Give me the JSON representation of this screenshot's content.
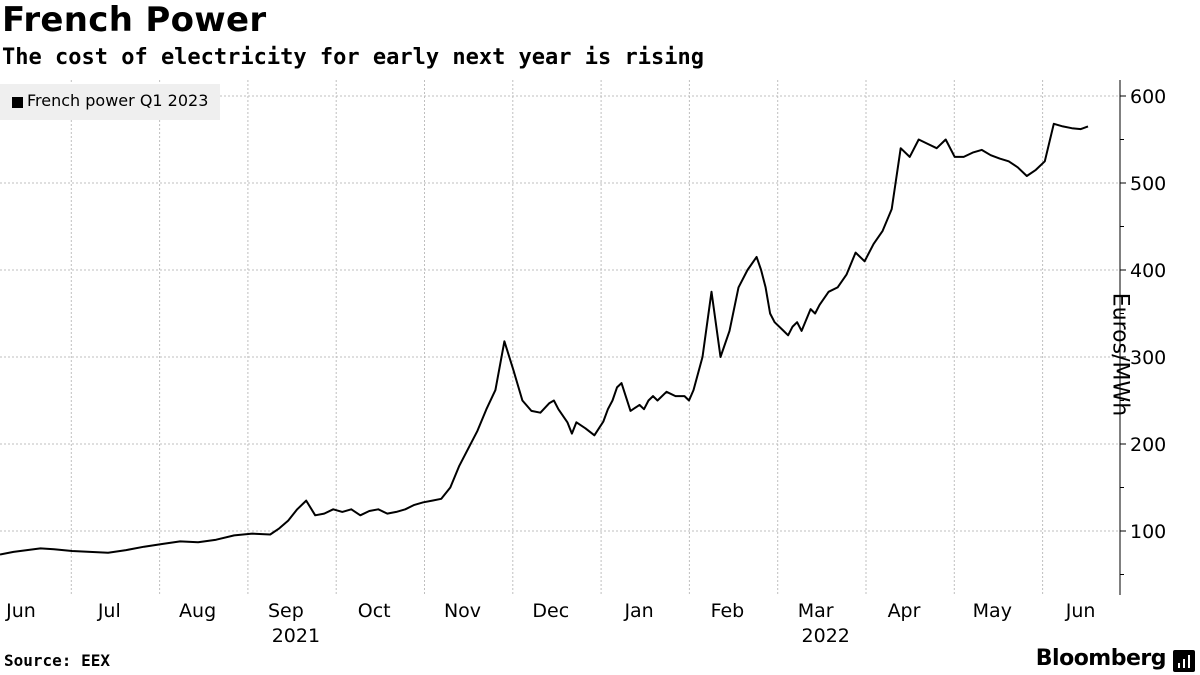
{
  "header": {
    "title": "French Power",
    "subtitle": "The cost of electricity for early next year is rising"
  },
  "footer": {
    "source": "Source: EEX",
    "brand": "Bloomberg"
  },
  "chart_data": {
    "type": "line",
    "title": "French Power",
    "subtitle": "The cost of electricity for early next year is rising",
    "ylabel": "Euros/MWh",
    "xlabel": "",
    "ylim": [
      25,
      620
    ],
    "yticks": [
      100,
      200,
      300,
      400,
      500,
      600
    ],
    "x_months": [
      "Jun",
      "Jul",
      "Aug",
      "Sep",
      "Oct",
      "Nov",
      "Dec",
      "Jan",
      "Feb",
      "Mar",
      "Apr",
      "May",
      "Jun"
    ],
    "year_labels": [
      {
        "label": "2021",
        "month_index": 3
      },
      {
        "label": "2022",
        "month_index": 9
      }
    ],
    "grid": true,
    "legend_position": "top-left",
    "series": [
      {
        "name": "French power Q1 2023",
        "color": "#000000",
        "x": [
          0,
          0.15,
          0.3,
          0.45,
          0.6,
          0.8,
          1.0,
          1.2,
          1.4,
          1.6,
          1.8,
          2.0,
          2.2,
          2.4,
          2.6,
          2.8,
          3.0,
          3.1,
          3.2,
          3.3,
          3.4,
          3.5,
          3.6,
          3.7,
          3.8,
          3.9,
          4.0,
          4.1,
          4.2,
          4.3,
          4.4,
          4.5,
          4.6,
          4.7,
          4.8,
          4.9,
          5.0,
          5.1,
          5.2,
          5.3,
          5.4,
          5.5,
          5.6,
          5.7,
          5.8,
          5.9,
          6.0,
          6.1,
          6.15,
          6.2,
          6.3,
          6.35,
          6.4,
          6.5,
          6.6,
          6.7,
          6.75,
          6.8,
          6.85,
          6.9,
          7.0,
          7.1,
          7.15,
          7.2,
          7.25,
          7.3,
          7.4,
          7.5,
          7.6,
          7.65,
          7.7,
          7.8,
          7.9,
          8.0,
          8.1,
          8.2,
          8.3,
          8.4,
          8.45,
          8.5,
          8.55,
          8.6,
          8.7,
          8.75,
          8.8,
          8.85,
          8.9,
          9.0,
          9.05,
          9.1,
          9.2,
          9.3,
          9.4,
          9.5,
          9.6,
          9.7,
          9.8,
          9.9,
          10.0,
          10.1,
          10.2,
          10.3,
          10.4,
          10.5,
          10.6,
          10.7,
          10.8,
          10.9,
          11.0,
          11.1,
          11.2,
          11.3,
          11.4,
          11.5,
          11.6,
          11.7,
          11.8,
          11.9,
          12.0,
          12.08
        ],
        "values": [
          73,
          76,
          78,
          80,
          79,
          77,
          76,
          75,
          78,
          82,
          85,
          88,
          87,
          90,
          95,
          97,
          96,
          103,
          112,
          125,
          135,
          118,
          120,
          125,
          122,
          125,
          118,
          123,
          125,
          120,
          122,
          125,
          130,
          133,
          135,
          137,
          150,
          175,
          195,
          215,
          240,
          262,
          318,
          285,
          250,
          238,
          236,
          247,
          250,
          240,
          225,
          212,
          225,
          218,
          210,
          226,
          240,
          250,
          265,
          270,
          238,
          245,
          240,
          250,
          255,
          250,
          260,
          255,
          255,
          250,
          262,
          300,
          375,
          300,
          330,
          380,
          400,
          415,
          400,
          380,
          350,
          340,
          330,
          325,
          335,
          340,
          330,
          355,
          350,
          360,
          375,
          380,
          395,
          420,
          410,
          430,
          445,
          470,
          540,
          530,
          550,
          545,
          540,
          550,
          530,
          530,
          535,
          538,
          532,
          528,
          525,
          518,
          508,
          515,
          525,
          568,
          565,
          563,
          562,
          565
        ]
      }
    ]
  }
}
